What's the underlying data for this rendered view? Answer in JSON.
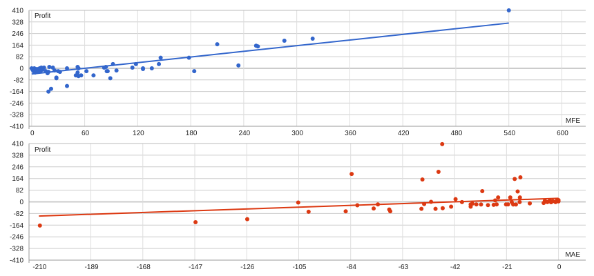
{
  "chart_data": [
    {
      "type": "scatter",
      "xlabel": "MFE",
      "ylabel": "Profit",
      "xlim": [
        -3,
        627
      ],
      "ylim": [
        -410,
        410
      ],
      "xticks": [
        0,
        60,
        120,
        180,
        240,
        300,
        360,
        420,
        480,
        540,
        600
      ],
      "yticks": [
        410,
        328,
        246,
        164,
        82,
        0,
        -82,
        -164,
        -246,
        -328,
        -410
      ],
      "grid": true,
      "color": "#3366cc",
      "trendline": [
        [
          0,
          -40
        ],
        [
          540,
          320
        ]
      ],
      "points": [
        [
          0,
          0
        ],
        [
          1,
          -10
        ],
        [
          2,
          -20
        ],
        [
          3,
          0
        ],
        [
          4,
          -30
        ],
        [
          5,
          -10
        ],
        [
          6,
          -5
        ],
        [
          7,
          -25
        ],
        [
          8,
          -15
        ],
        [
          9,
          0
        ],
        [
          10,
          -20
        ],
        [
          11,
          5
        ],
        [
          12,
          -10
        ],
        [
          14,
          5
        ],
        [
          16,
          -20
        ],
        [
          18,
          -35
        ],
        [
          19,
          -25
        ],
        [
          19,
          -165
        ],
        [
          20,
          10
        ],
        [
          22,
          -145
        ],
        [
          24,
          5
        ],
        [
          26,
          -15
        ],
        [
          28,
          -65
        ],
        [
          28,
          -70
        ],
        [
          30,
          -20
        ],
        [
          32,
          -25
        ],
        [
          40,
          0
        ],
        [
          40,
          -125
        ],
        [
          50,
          -50
        ],
        [
          52,
          10
        ],
        [
          52,
          -30
        ],
        [
          53,
          0
        ],
        [
          53,
          -55
        ],
        [
          56,
          -50
        ],
        [
          62,
          -20
        ],
        [
          70,
          -50
        ],
        [
          82,
          5
        ],
        [
          84,
          10
        ],
        [
          85,
          -20
        ],
        [
          86,
          -20
        ],
        [
          89,
          -70
        ],
        [
          92,
          30
        ],
        [
          96,
          -15
        ],
        [
          114,
          5
        ],
        [
          118,
          30
        ],
        [
          126,
          0
        ],
        [
          126,
          -5
        ],
        [
          136,
          0
        ],
        [
          144,
          30
        ],
        [
          146,
          75
        ],
        [
          178,
          75
        ],
        [
          184,
          -20
        ],
        [
          210,
          170
        ],
        [
          234,
          20
        ],
        [
          254,
          160
        ],
        [
          256,
          155
        ],
        [
          286,
          195
        ],
        [
          318,
          210
        ],
        [
          540,
          410
        ]
      ]
    },
    {
      "type": "scatter",
      "xlabel": "MAE",
      "ylabel": "Profit",
      "xlim": [
        -214,
        11
      ],
      "ylim": [
        -410,
        410
      ],
      "xticks": [
        -210,
        -189,
        -168,
        -147,
        -126,
        -105,
        -84,
        -63,
        -42,
        -21,
        0
      ],
      "yticks": [
        410,
        328,
        246,
        164,
        82,
        0,
        -82,
        -164,
        -246,
        -328,
        -410
      ],
      "grid": true,
      "color": "#dc3912",
      "trendline": [
        [
          -210,
          -100
        ],
        [
          0,
          25
        ]
      ],
      "points": [
        [
          -209.6,
          -167
        ],
        [
          -146.7,
          -143
        ],
        [
          -125.8,
          -122
        ],
        [
          -105.2,
          -5
        ],
        [
          -101,
          -70
        ],
        [
          -86,
          -67
        ],
        [
          -83.6,
          196
        ],
        [
          -81.3,
          -24
        ],
        [
          -74.7,
          -47
        ],
        [
          -73,
          -18
        ],
        [
          -68.4,
          -54
        ],
        [
          -68,
          -67
        ],
        [
          -55.4,
          -49
        ],
        [
          -55,
          157
        ],
        [
          -54.3,
          -16
        ],
        [
          -51.5,
          0
        ],
        [
          -49.7,
          -49
        ],
        [
          -48.5,
          211
        ],
        [
          -47,
          406
        ],
        [
          -46.8,
          -45
        ],
        [
          -43.4,
          -34
        ],
        [
          -41.6,
          19
        ],
        [
          -39,
          -2
        ],
        [
          -35.5,
          -34
        ],
        [
          -35.5,
          -18
        ],
        [
          -34.8,
          -13
        ],
        [
          -33.2,
          -18
        ],
        [
          -31.3,
          -19
        ],
        [
          -30.8,
          75
        ],
        [
          -28.5,
          -23
        ],
        [
          -26.2,
          -21
        ],
        [
          -25.6,
          10
        ],
        [
          -25,
          -18
        ],
        [
          -24.4,
          31
        ],
        [
          -21.2,
          -18
        ],
        [
          -20.4,
          -18
        ],
        [
          -19.5,
          31
        ],
        [
          -18.9,
          -2
        ],
        [
          -18.3,
          -19
        ],
        [
          -17.7,
          161
        ],
        [
          -17.2,
          -19
        ],
        [
          -16.5,
          73
        ],
        [
          -15.7,
          -2
        ],
        [
          -15.6,
          31
        ],
        [
          -15.4,
          172
        ],
        [
          -11.6,
          -11
        ],
        [
          -6,
          -8
        ],
        [
          -5.5,
          8
        ],
        [
          -4.5,
          -2
        ],
        [
          -3.5,
          10
        ],
        [
          -3,
          -3
        ],
        [
          -2.3,
          5
        ],
        [
          -1.2,
          -2
        ],
        [
          -0.6,
          12
        ],
        [
          0,
          12
        ],
        [
          0,
          3
        ]
      ]
    }
  ]
}
